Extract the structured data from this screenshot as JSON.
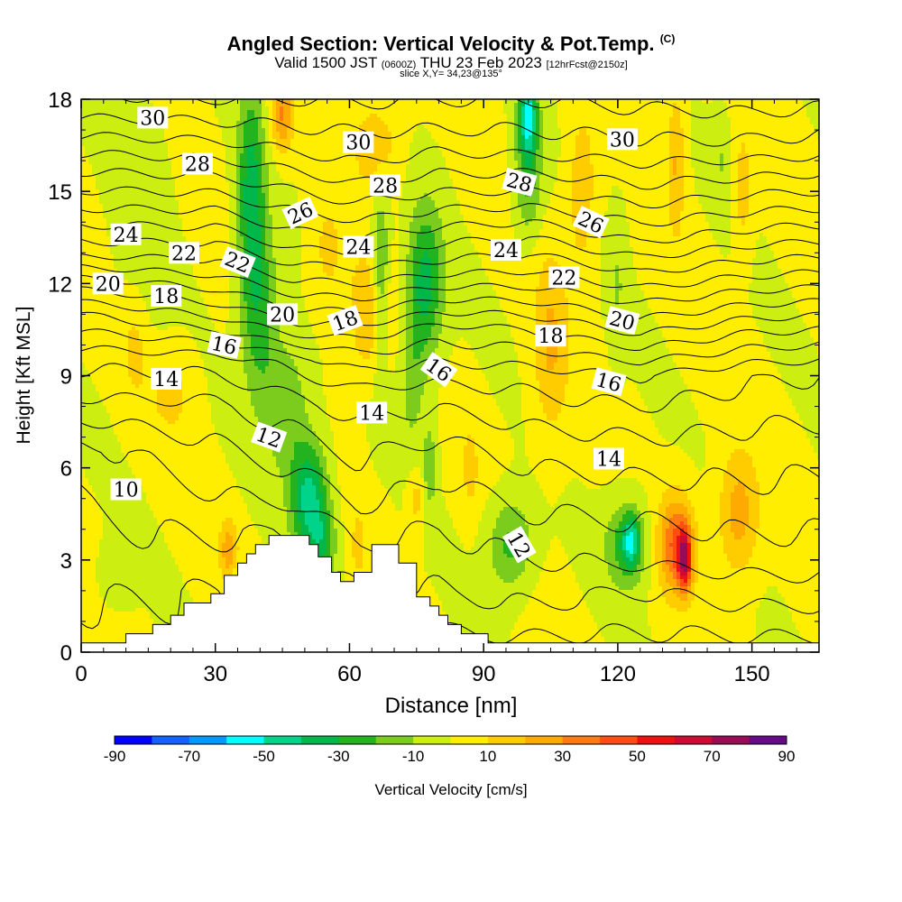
{
  "title": {
    "main": "Angled Section: Vertical Velocity & Pot.Temp.",
    "unit": "(C)",
    "valid_prefix": "Valid 1500 JST",
    "valid_z": "(0600Z)",
    "valid_date": "THU 23 Feb 2023",
    "valid_fcst": "[12hrFcst@2150z]",
    "slice": "slice X,Y= 34,23@135°"
  },
  "colors": {
    "bins": [
      "#0000ff",
      "#1560ff",
      "#0099ff",
      "#00ffff",
      "#00d38a",
      "#00b84a",
      "#22b31f",
      "#7ccc1e",
      "#ccee11",
      "#ffee00",
      "#ffcc00",
      "#ffaa00",
      "#ff7a12",
      "#ff4d14",
      "#ee1111",
      "#cc0c33",
      "#990c55",
      "#660a88"
    ],
    "background": "#ffee00",
    "terrain": "#ffffff"
  },
  "chart_data": {
    "type": "heatmap",
    "xlabel": "Distance [nm]",
    "ylabel": "Height [Kft MSL]",
    "xlim": [
      0,
      165
    ],
    "ylim": [
      0,
      18
    ],
    "xticks": [
      0,
      30,
      60,
      90,
      120,
      150
    ],
    "yticks": [
      0,
      3,
      6,
      9,
      12,
      15,
      18
    ],
    "colorbar": {
      "label": "Vertical Velocity [cm/s]",
      "levels": [
        -90,
        -80,
        -70,
        -60,
        -50,
        -40,
        -30,
        -20,
        -10,
        0,
        10,
        20,
        30,
        40,
        50,
        60,
        70,
        80,
        90
      ],
      "tick_labels": [
        -90,
        -70,
        -50,
        -30,
        -10,
        10,
        30,
        50,
        70,
        90
      ]
    },
    "terrain_profile": [
      [
        0,
        0.3
      ],
      [
        10,
        0.3
      ],
      [
        10,
        0.6
      ],
      [
        16,
        0.6
      ],
      [
        16,
        0.9
      ],
      [
        20,
        0.9
      ],
      [
        20,
        1.2
      ],
      [
        23,
        1.2
      ],
      [
        23,
        1.6
      ],
      [
        29,
        1.6
      ],
      [
        29,
        1.9
      ],
      [
        32,
        1.9
      ],
      [
        32,
        2.5
      ],
      [
        35,
        2.5
      ],
      [
        35,
        2.9
      ],
      [
        37,
        2.9
      ],
      [
        37,
        3.2
      ],
      [
        39,
        3.2
      ],
      [
        39,
        3.5
      ],
      [
        42,
        3.5
      ],
      [
        42,
        3.8
      ],
      [
        51,
        3.8
      ],
      [
        51,
        3.5
      ],
      [
        53,
        3.5
      ],
      [
        53,
        3.1
      ],
      [
        56,
        3.1
      ],
      [
        56,
        2.6
      ],
      [
        58,
        2.6
      ],
      [
        58,
        2.3
      ],
      [
        61,
        2.3
      ],
      [
        61,
        2.6
      ],
      [
        65,
        2.6
      ],
      [
        65,
        3.5
      ],
      [
        71,
        3.5
      ],
      [
        71,
        2.9
      ],
      [
        75,
        2.9
      ],
      [
        75,
        1.8
      ],
      [
        78,
        1.8
      ],
      [
        78,
        1.5
      ],
      [
        80,
        1.5
      ],
      [
        80,
        1.2
      ],
      [
        82,
        1.2
      ],
      [
        82,
        0.9
      ],
      [
        85,
        0.9
      ],
      [
        85,
        0.6
      ],
      [
        91,
        0.6
      ],
      [
        91,
        0.3
      ],
      [
        165,
        0.3
      ]
    ],
    "velocity_features": [
      {
        "x": 38,
        "y": 15.0,
        "sx": 3.0,
        "sy": 3.5,
        "value": -35
      },
      {
        "x": 40,
        "y": 11.0,
        "sx": 4.0,
        "sy": 3.0,
        "value": -25
      },
      {
        "x": 46,
        "y": 8.0,
        "sx": 5.0,
        "sy": 2.2,
        "value": -20
      },
      {
        "x": 51,
        "y": 5.0,
        "sx": 4.0,
        "sy": 1.8,
        "value": -45
      },
      {
        "x": 54,
        "y": 3.5,
        "sx": 3.0,
        "sy": 1.2,
        "value": -25
      },
      {
        "x": 67,
        "y": 12.0,
        "sx": 2.0,
        "sy": 3.0,
        "value": -30
      },
      {
        "x": 77,
        "y": 12.0,
        "sx": 4.0,
        "sy": 2.5,
        "value": -35
      },
      {
        "x": 74,
        "y": 9.0,
        "sx": 3.0,
        "sy": 2.5,
        "value": -15
      },
      {
        "x": 78,
        "y": 6.0,
        "sx": 1.5,
        "sy": 1.3,
        "value": -20
      },
      {
        "x": 100,
        "y": 17.5,
        "sx": 2.0,
        "sy": 1.2,
        "value": -50
      },
      {
        "x": 100,
        "y": 15.5,
        "sx": 3.0,
        "sy": 2.0,
        "value": -25
      },
      {
        "x": 96,
        "y": 3.5,
        "sx": 5.0,
        "sy": 1.5,
        "value": -25
      },
      {
        "x": 122,
        "y": 3.5,
        "sx": 5.0,
        "sy": 1.5,
        "value": -25
      },
      {
        "x": 123,
        "y": 3.6,
        "sx": 2.0,
        "sy": 0.8,
        "value": -35
      },
      {
        "x": 120,
        "y": 12.0,
        "sx": 2.0,
        "sy": 2.5,
        "value": -10
      },
      {
        "x": 143,
        "y": 16.0,
        "sx": 2.0,
        "sy": 1.5,
        "value": -10
      },
      {
        "x": 35,
        "y": 2.0,
        "sx": 2.0,
        "sy": 0.8,
        "value": -10
      },
      {
        "x": 8,
        "y": 2.5,
        "sx": 4.0,
        "sy": 1.0,
        "value": -10
      },
      {
        "x": 14,
        "y": 14.0,
        "sx": 6.0,
        "sy": 4.0,
        "value": -8
      },
      {
        "x": 45,
        "y": 17.5,
        "sx": 2.5,
        "sy": 1.2,
        "value": 30
      },
      {
        "x": 65,
        "y": 11.0,
        "sx": 5.0,
        "sy": 2.0,
        "value": 22
      },
      {
        "x": 66,
        "y": 16.5,
        "sx": 5.0,
        "sy": 1.5,
        "value": 18
      },
      {
        "x": 55,
        "y": 13.0,
        "sx": 4.0,
        "sy": 2.0,
        "value": 12
      },
      {
        "x": 105,
        "y": 10.0,
        "sx": 4.0,
        "sy": 3.0,
        "value": 20
      },
      {
        "x": 112,
        "y": 15.0,
        "sx": 3.0,
        "sy": 2.5,
        "value": 18
      },
      {
        "x": 133,
        "y": 3.5,
        "sx": 4.0,
        "sy": 1.6,
        "value": 40
      },
      {
        "x": 135,
        "y": 3.0,
        "sx": 1.5,
        "sy": 1.0,
        "value": 50
      },
      {
        "x": 147,
        "y": 4.5,
        "sx": 4.5,
        "sy": 2.0,
        "value": 25
      },
      {
        "x": 133,
        "y": 16.0,
        "sx": 2.0,
        "sy": 2.5,
        "value": 20
      },
      {
        "x": 148,
        "y": 15.0,
        "sx": 2.0,
        "sy": 2.0,
        "value": 15
      },
      {
        "x": 33,
        "y": 3.3,
        "sx": 2.0,
        "sy": 1.0,
        "value": 25
      },
      {
        "x": 20,
        "y": 8.5,
        "sx": 5.0,
        "sy": 1.5,
        "value": 12
      },
      {
        "x": 12,
        "y": 10.0,
        "sx": 3.0,
        "sy": 2.0,
        "value": 12
      },
      {
        "x": 75,
        "y": 5.0,
        "sx": 2.0,
        "sy": 1.0,
        "value": 15
      },
      {
        "x": 62,
        "y": 3.5,
        "sx": 1.5,
        "sy": 1.0,
        "value": 15
      },
      {
        "x": 87,
        "y": 6.0,
        "sx": 2.0,
        "sy": 1.5,
        "value": 12
      }
    ],
    "contours": {
      "levels": [
        8,
        9,
        10,
        11,
        12,
        13,
        14,
        15,
        16,
        17,
        18,
        19,
        20,
        21,
        22,
        23,
        24,
        25,
        26,
        27,
        28,
        29,
        30,
        31,
        32
      ],
      "base_heights": [
        {
          "x": 0,
          "theta": [
            [
              0,
              8.5
            ],
            [
              1.5,
              9
            ],
            [
              3,
              9.6
            ],
            [
              5,
              10.1
            ],
            [
              6.5,
              10.6
            ],
            [
              8.5,
              13.3
            ],
            [
              9.5,
              14.3
            ],
            [
              11,
              17
            ],
            [
              12,
              19.5
            ],
            [
              13,
              22.3
            ],
            [
              14.5,
              25.1
            ],
            [
              16,
              27.6
            ],
            [
              17.5,
              30.2
            ],
            [
              18,
              30.8
            ]
          ]
        },
        {
          "x": 30,
          "theta": [
            [
              0,
              8.5
            ],
            [
              2,
              9
            ],
            [
              4,
              10.2
            ],
            [
              6,
              11.5
            ],
            [
              8,
              12.8
            ],
            [
              9.5,
              14.5
            ],
            [
              11,
              18.2
            ],
            [
              12.5,
              21.5
            ],
            [
              14,
              24.3
            ],
            [
              15.5,
              27
            ],
            [
              17,
              29.6
            ],
            [
              18,
              31
            ]
          ]
        },
        {
          "x": 48,
          "theta": [
            [
              0,
              8.5
            ],
            [
              4,
              10
            ],
            [
              5,
              11.3
            ],
            [
              6.5,
              12.5
            ],
            [
              8,
              13.6
            ],
            [
              9.5,
              15.5
            ],
            [
              10.5,
              18.5
            ],
            [
              12,
              21.8
            ],
            [
              13.5,
              24.7
            ],
            [
              15,
              27
            ],
            [
              16.5,
              29.3
            ],
            [
              18,
              31
            ]
          ]
        },
        {
          "x": 62,
          "theta": [
            [
              0,
              8.5
            ],
            [
              3,
              10.7
            ],
            [
              5,
              12.2
            ],
            [
              7,
              13.5
            ],
            [
              8.5,
              14.8
            ],
            [
              10,
              17.5
            ],
            [
              11.5,
              21
            ],
            [
              13,
              24
            ],
            [
              14.5,
              26.8
            ],
            [
              16,
              29.1
            ],
            [
              18,
              31.1
            ]
          ]
        },
        {
          "x": 80,
          "theta": [
            [
              0,
              8.5
            ],
            [
              2,
              10
            ],
            [
              4.5,
              11.2
            ],
            [
              6.5,
              12.6
            ],
            [
              8.5,
              14.6
            ],
            [
              10.5,
              17.6
            ],
            [
              12.5,
              22.5
            ],
            [
              14,
              25.3
            ],
            [
              15.5,
              27.9
            ],
            [
              17,
              30
            ],
            [
              18,
              31
            ]
          ]
        },
        {
          "x": 100,
          "theta": [
            [
              0,
              8.5
            ],
            [
              1.5,
              10
            ],
            [
              3,
              11
            ],
            [
              5,
              12.3
            ],
            [
              7,
              13.7
            ],
            [
              9,
              15.5
            ],
            [
              10.5,
              18
            ],
            [
              12,
              21.2
            ],
            [
              13.5,
              24
            ],
            [
              15,
              27
            ],
            [
              16.5,
              29.5
            ],
            [
              18,
              31
            ]
          ]
        },
        {
          "x": 125,
          "theta": [
            [
              0,
              8.5
            ],
            [
              2,
              10
            ],
            [
              3,
              11.2
            ],
            [
              5,
              12.5
            ],
            [
              7,
              14
            ],
            [
              9,
              16
            ],
            [
              10.5,
              19.3
            ],
            [
              12,
              22.3
            ],
            [
              13.5,
              25.3
            ],
            [
              15,
              27.7
            ],
            [
              16.5,
              29.8
            ],
            [
              18,
              31.3
            ]
          ]
        },
        {
          "x": 150,
          "theta": [
            [
              0,
              8.5
            ],
            [
              1.5,
              10
            ],
            [
              3,
              11.5
            ],
            [
              5,
              12.7
            ],
            [
              7,
              13.8
            ],
            [
              9,
              15.2
            ],
            [
              10.5,
              18.2
            ],
            [
              12,
              21.5
            ],
            [
              13.5,
              24.5
            ],
            [
              15,
              27.2
            ],
            [
              16.5,
              29.8
            ],
            [
              18,
              31.5
            ]
          ]
        },
        {
          "x": 165,
          "theta": [
            [
              0,
              8.5
            ],
            [
              1.5,
              10
            ],
            [
              3,
              11.5
            ],
            [
              5,
              12.6
            ],
            [
              7,
              13.7
            ],
            [
              9,
              15
            ],
            [
              10.5,
              18
            ],
            [
              12,
              21.3
            ],
            [
              13.5,
              24.3
            ],
            [
              15,
              27
            ],
            [
              16.5,
              29.6
            ],
            [
              18,
              31.3
            ]
          ]
        }
      ],
      "labels": [
        {
          "text": "30",
          "x": 16,
          "y": 17.4,
          "angle": 0
        },
        {
          "text": "28",
          "x": 26,
          "y": 15.9,
          "angle": 0
        },
        {
          "text": "24",
          "x": 10,
          "y": 13.6,
          "angle": 0
        },
        {
          "text": "22",
          "x": 23,
          "y": 13.0,
          "angle": 0
        },
        {
          "text": "20",
          "x": 6,
          "y": 12.0,
          "angle": 0
        },
        {
          "text": "18",
          "x": 19,
          "y": 11.6,
          "angle": 0
        },
        {
          "text": "14",
          "x": 19,
          "y": 8.9,
          "angle": 0
        },
        {
          "text": "10",
          "x": 10,
          "y": 5.3,
          "angle": 0
        },
        {
          "text": "26",
          "x": 49,
          "y": 14.3,
          "angle": -25
        },
        {
          "text": "22",
          "x": 35,
          "y": 12.7,
          "angle": 22
        },
        {
          "text": "20",
          "x": 45,
          "y": 11.0,
          "angle": 0
        },
        {
          "text": "16",
          "x": 32,
          "y": 10.0,
          "angle": 12
        },
        {
          "text": "12",
          "x": 42,
          "y": 7.0,
          "angle": 20
        },
        {
          "text": "30",
          "x": 62,
          "y": 16.6,
          "angle": 0
        },
        {
          "text": "28",
          "x": 68,
          "y": 15.2,
          "angle": 0
        },
        {
          "text": "24",
          "x": 62,
          "y": 13.2,
          "angle": 0
        },
        {
          "text": "18",
          "x": 59,
          "y": 10.8,
          "angle": -20
        },
        {
          "text": "14",
          "x": 65,
          "y": 7.8,
          "angle": 0
        },
        {
          "text": "16",
          "x": 80,
          "y": 9.2,
          "angle": 35
        },
        {
          "text": "28",
          "x": 98,
          "y": 15.3,
          "angle": 15
        },
        {
          "text": "24",
          "x": 95,
          "y": 13.1,
          "angle": 0
        },
        {
          "text": "30",
          "x": 121,
          "y": 16.7,
          "angle": 0
        },
        {
          "text": "26",
          "x": 114,
          "y": 14.0,
          "angle": 25
        },
        {
          "text": "22",
          "x": 108,
          "y": 12.2,
          "angle": 0
        },
        {
          "text": "18",
          "x": 105,
          "y": 10.3,
          "angle": 0
        },
        {
          "text": "20",
          "x": 121,
          "y": 10.8,
          "angle": 15
        },
        {
          "text": "16",
          "x": 118,
          "y": 8.8,
          "angle": 15
        },
        {
          "text": "14",
          "x": 118,
          "y": 6.3,
          "angle": 0
        },
        {
          "text": "12",
          "x": 98,
          "y": 3.5,
          "angle": 60
        }
      ]
    }
  }
}
